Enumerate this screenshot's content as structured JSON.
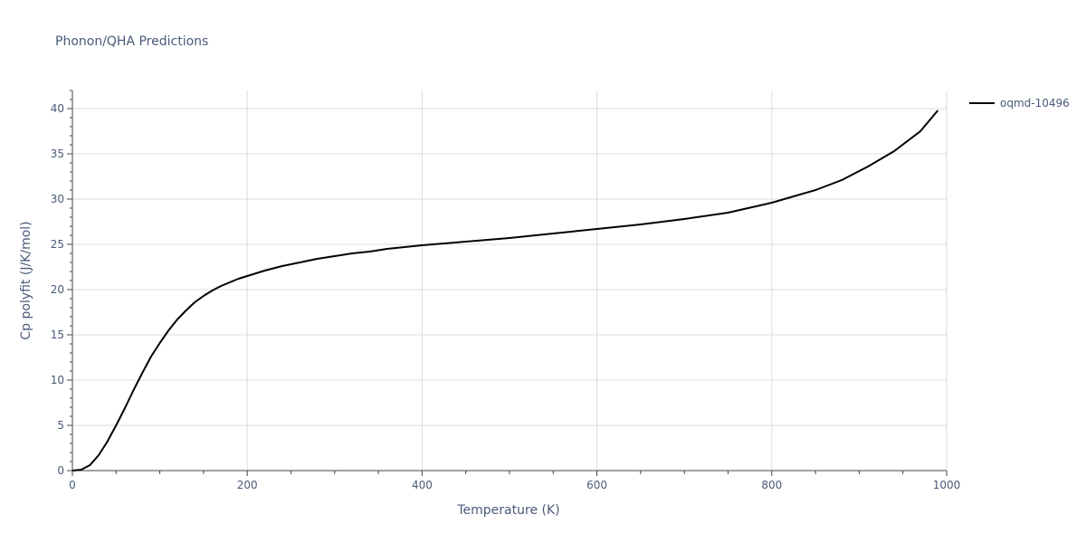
{
  "chart_data": {
    "type": "line",
    "title": "Phonon/QHA Predictions",
    "xlabel": "Temperature (K)",
    "ylabel": "Cp polyfit (J/K/mol)",
    "xlim": [
      0,
      1000
    ],
    "ylim": [
      0,
      42
    ],
    "xticks": [
      0,
      200,
      400,
      600,
      800,
      1000
    ],
    "yticks": [
      0,
      5,
      10,
      15,
      20,
      25,
      30,
      35,
      40
    ],
    "grid": true,
    "legend_position": "top-right",
    "series": [
      {
        "name": "oqmd-10496",
        "color": "#000000",
        "x": [
          0,
          10,
          20,
          30,
          40,
          50,
          60,
          70,
          80,
          90,
          100,
          110,
          120,
          130,
          140,
          150,
          160,
          170,
          180,
          190,
          200,
          220,
          240,
          260,
          280,
          300,
          320,
          340,
          360,
          380,
          400,
          450,
          500,
          550,
          600,
          650,
          700,
          750,
          800,
          850,
          880,
          910,
          940,
          970,
          990
        ],
        "y": [
          0,
          0.1,
          0.6,
          1.7,
          3.2,
          5.0,
          6.9,
          8.9,
          10.8,
          12.6,
          14.1,
          15.5,
          16.7,
          17.7,
          18.6,
          19.3,
          19.9,
          20.4,
          20.8,
          21.2,
          21.5,
          22.1,
          22.6,
          23.0,
          23.4,
          23.7,
          24.0,
          24.2,
          24.5,
          24.7,
          24.9,
          25.3,
          25.7,
          26.2,
          26.7,
          27.2,
          27.8,
          28.5,
          29.6,
          31.0,
          32.1,
          33.6,
          35.3,
          37.5,
          39.8
        ]
      }
    ]
  }
}
